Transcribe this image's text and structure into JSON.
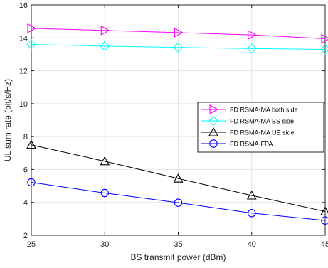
{
  "chart_data": {
    "type": "line",
    "xlabel": "BS transmit power (dBm)",
    "ylabel": "UL sum rate (bit/s/Hz)",
    "x": [
      25,
      30,
      35,
      40,
      45
    ],
    "xlim": [
      25,
      45
    ],
    "ylim": [
      2,
      16
    ],
    "xticks": [
      25,
      30,
      35,
      40,
      45
    ],
    "yticks": [
      2,
      4,
      6,
      8,
      10,
      12,
      14,
      16
    ],
    "grid": true,
    "legend_position": "right, middle",
    "series": [
      {
        "name": "FD RSMA-MA both side",
        "values": [
          14.58,
          14.45,
          14.32,
          14.18,
          13.95
        ],
        "color": "#ff00ff",
        "marker": "triangle-right"
      },
      {
        "name": "FD RSMA-MA BS side",
        "values": [
          13.6,
          13.5,
          13.42,
          13.35,
          13.3
        ],
        "color": "#00ffff",
        "marker": "diamond"
      },
      {
        "name": "FD RSMA-MA UE side",
        "values": [
          7.5,
          6.5,
          5.45,
          4.42,
          3.45
        ],
        "color": "#000000",
        "marker": "triangle-up"
      },
      {
        "name": "FD RSMA-FPA",
        "values": [
          5.22,
          4.57,
          3.98,
          3.35,
          2.9
        ],
        "color": "#0000ff",
        "marker": "circle"
      }
    ]
  }
}
